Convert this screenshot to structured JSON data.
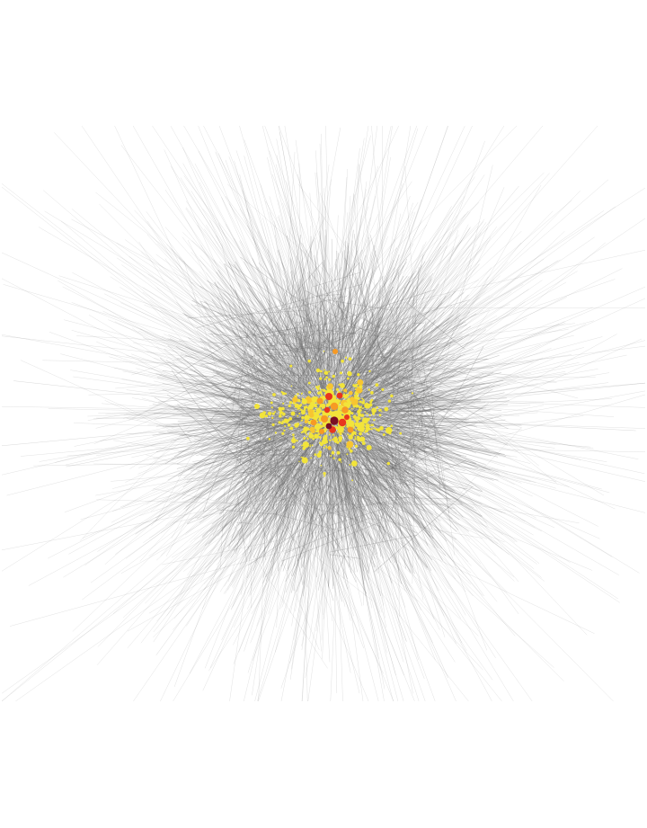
{
  "diagram": {
    "type": "force-directed network graph",
    "background": "#ffffff",
    "edge_color": "#6b6b6b",
    "node_palette": {
      "low": "#f2e43a",
      "mid_low": "#f7c531",
      "mid": "#f79a24",
      "high": "#e8361f",
      "peak": "#7a0f24"
    },
    "legend": null,
    "labels": []
  }
}
